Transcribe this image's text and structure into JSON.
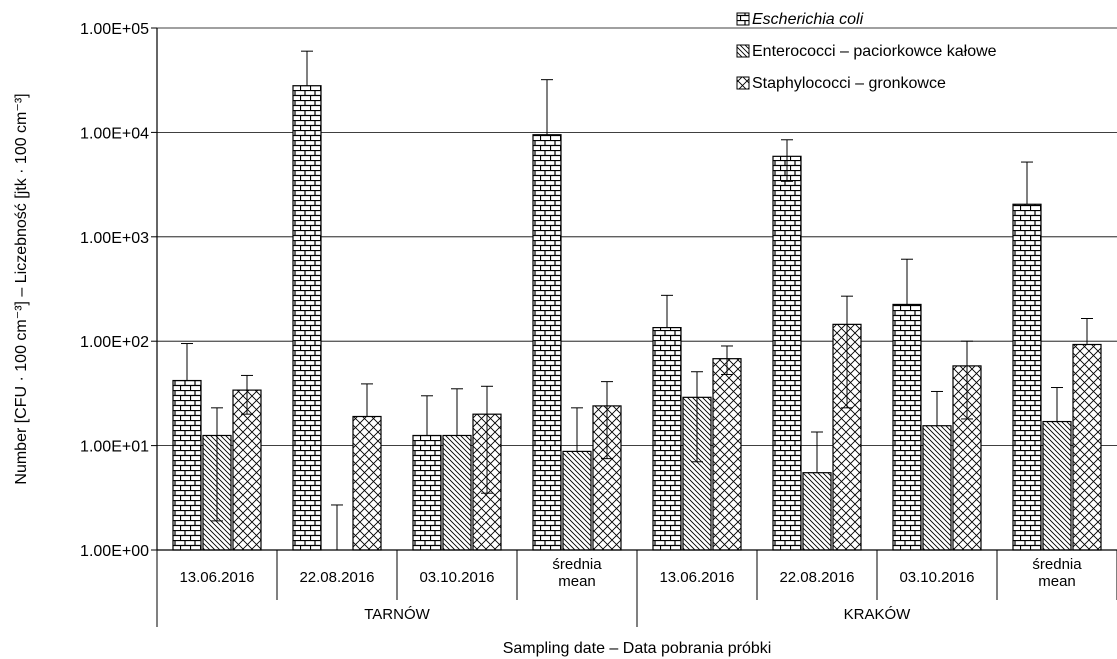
{
  "chart_data": {
    "type": "bar",
    "ylabel": "Number [CFU · 100 cm⁻³] – Liczebność [jtk · 100 cm⁻³]",
    "xlabel": "Sampling date – Data pobrania próbki",
    "y_scale": "log",
    "ylim": [
      1,
      100000
    ],
    "y_ticks": [
      "1.00E+00",
      "1.00E+01",
      "1.00E+02",
      "1.00E+03",
      "1.00E+04",
      "1.00E+05"
    ],
    "grid": true,
    "legend_position": "top-right",
    "groups": [
      {
        "label": "TARNÓW",
        "categories": [
          "13.06.2016",
          "22.08.2016",
          "03.10.2016",
          "średnia mean"
        ]
      },
      {
        "label": "KRAKÓW",
        "categories": [
          "13.06.2016",
          "22.08.2016",
          "03.10.2016",
          "średnia mean"
        ]
      }
    ],
    "categories": [
      "13.06.2016",
      "22.08.2016",
      "03.10.2016",
      "średnia mean",
      "13.06.2016",
      "22.08.2016",
      "03.10.2016",
      "średnia mean"
    ],
    "series": [
      {
        "name": "Escherichia coli",
        "name_italic": true,
        "pattern": "brick",
        "values": [
          42,
          28000,
          12.5,
          9500,
          135,
          5900,
          225,
          2050
        ],
        "err_high": [
          95,
          60000,
          30,
          32000,
          275,
          8500,
          610,
          5200
        ],
        "err_low": [
          42,
          28000,
          12.5,
          9500,
          135,
          3400,
          225,
          2050
        ]
      },
      {
        "name": "Enterococci – paciorkowce kałowe",
        "name_italic": false,
        "pattern": "diagonal",
        "values": [
          12.5,
          0,
          12.5,
          8.8,
          29,
          5.5,
          15.5,
          17
        ],
        "err_high": [
          23,
          2.7,
          35,
          23,
          51,
          13.5,
          33,
          36
        ],
        "err_low": [
          1.9,
          0,
          12.5,
          8.8,
          7,
          5.5,
          15.5,
          17
        ]
      },
      {
        "name": "Staphylococci – gronkowce",
        "name_italic": false,
        "pattern": "crosshatch",
        "values": [
          34,
          19,
          20,
          24,
          68,
          145,
          58,
          93
        ],
        "err_high": [
          47,
          39,
          37,
          41,
          90,
          270,
          100,
          165
        ],
        "err_low": [
          20,
          19,
          3.5,
          7.5,
          48,
          23,
          18,
          93
        ]
      }
    ]
  }
}
